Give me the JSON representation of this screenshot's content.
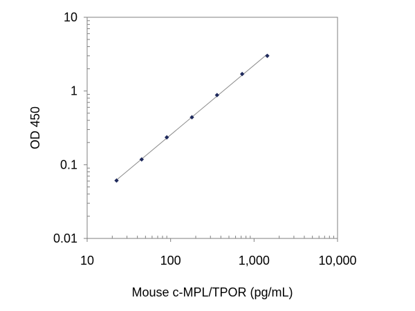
{
  "chart_data": {
    "type": "scatter",
    "title": "",
    "xlabel": "Mouse c-MPL/TPOR  (pg/mL)",
    "ylabel": "OD 450",
    "x_scale": "log",
    "y_scale": "log",
    "xlim": [
      10,
      10000
    ],
    "ylim": [
      0.01,
      10
    ],
    "x_ticks": [
      {
        "value": 10,
        "label": "10"
      },
      {
        "value": 100,
        "label": "100"
      },
      {
        "value": 1000,
        "label": "1,000"
      },
      {
        "value": 10000,
        "label": "10,000"
      }
    ],
    "y_ticks": [
      {
        "value": 0.01,
        "label": "0.01"
      },
      {
        "value": 0.1,
        "label": "0.1"
      },
      {
        "value": 1,
        "label": "1"
      },
      {
        "value": 10,
        "label": "10"
      }
    ],
    "grid": false,
    "legend": "none",
    "series": [
      {
        "marker": "diamond",
        "color": "#1f2a5c",
        "trendline": true,
        "trendline_color": "#8a8a8a",
        "x": [
          22.5,
          45,
          90,
          180,
          360,
          720,
          1440
        ],
        "y": [
          0.061,
          0.118,
          0.235,
          0.44,
          0.88,
          1.7,
          3.0
        ]
      }
    ]
  }
}
